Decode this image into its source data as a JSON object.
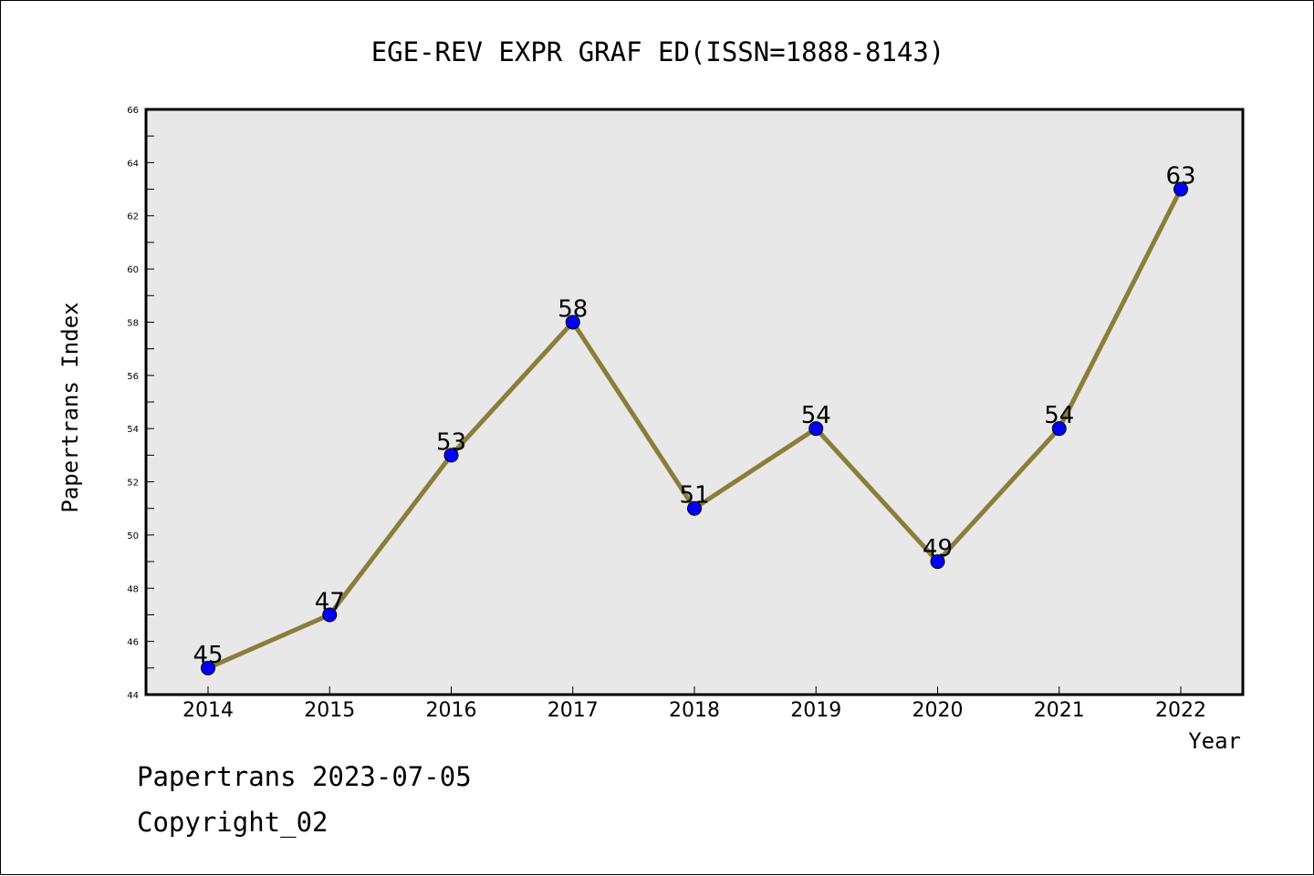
{
  "chart_data": {
    "type": "line",
    "title": "EGE-REV EXPR GRAF ED(ISSN=1888-8143)",
    "xlabel": "Year",
    "ylabel": "Papertrans Index",
    "x": [
      "2014",
      "2015",
      "2016",
      "2017",
      "2018",
      "2019",
      "2020",
      "2021",
      "2022"
    ],
    "series": [
      {
        "values": [
          45,
          47,
          53,
          58,
          51,
          54,
          49,
          54,
          63
        ]
      }
    ],
    "ylim": [
      44,
      66
    ],
    "yticks": [
      44,
      46,
      48,
      50,
      52,
      54,
      56,
      58,
      60,
      62,
      64,
      66
    ],
    "data_labels": [
      "45",
      "47",
      "53",
      "58",
      "51",
      "54",
      "49",
      "54",
      "63"
    ],
    "grid": false,
    "legend": "none",
    "colors": {
      "line": "#8b7d3a",
      "marker": "#0000ff",
      "plot_background": "#e8e8e8"
    }
  },
  "footer": {
    "date_text": "Papertrans 2023-07-05",
    "copyright_text": "Copyright_02"
  }
}
